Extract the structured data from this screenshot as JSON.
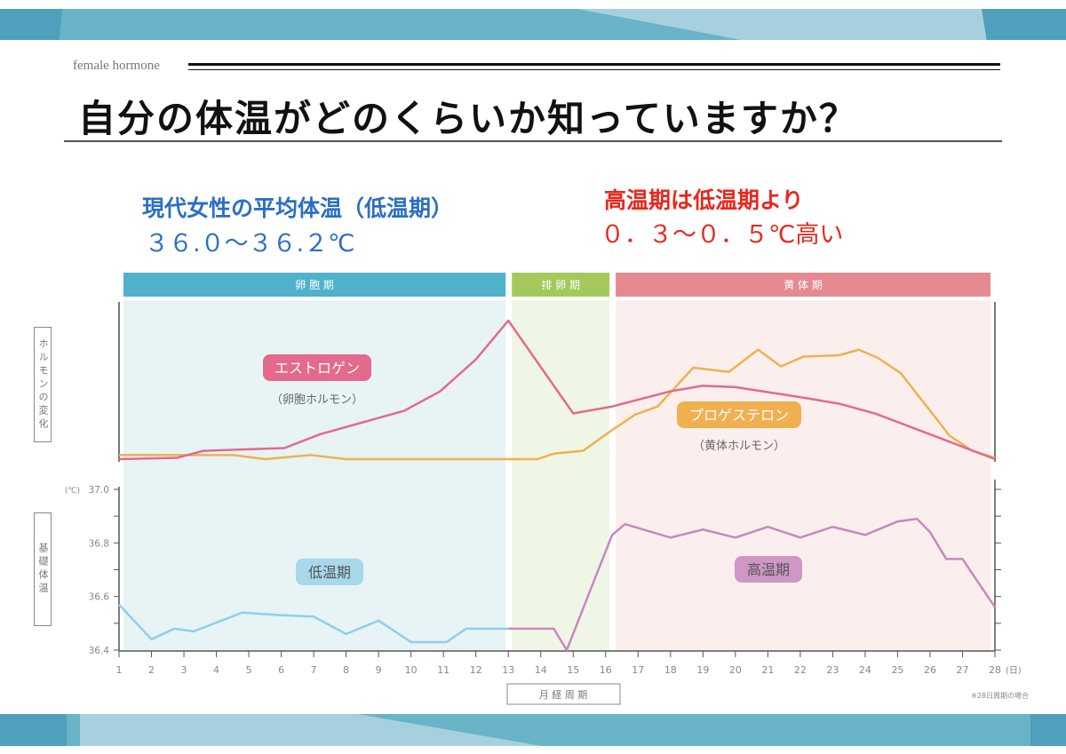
{
  "header": {
    "kicker": "female hormone",
    "title": "自分の体温がどのくらいか知っていますか？"
  },
  "callouts": {
    "average_label": "現代女性の平均体温（低温期）",
    "average_value": "３６.０～３６.２℃",
    "high_label": "高温期は低温期より",
    "high_value": "０．３～０．５℃高い"
  },
  "colors": {
    "follicular": "#4fb2cc",
    "ovulation": "#a3c95a",
    "luteal": "#e58a91",
    "estrogen": "#e36a8c",
    "progesterone": "#f0b050",
    "low_temp": "#8fcfe6",
    "high_temp": "#c987bf",
    "title_blue": "#2b6fc2",
    "title_red": "#e8281e"
  },
  "chart_data": [
    {
      "type": "line",
      "ylabel": "ホルモンの変化",
      "xlim": [
        1,
        28
      ],
      "phases": [
        {
          "label": "卵 胞 期",
          "from": 1,
          "to": 13
        },
        {
          "label": "排 卵 期",
          "from": 13,
          "to": 16.2
        },
        {
          "label": "黄 体 期",
          "from": 16.2,
          "to": 28
        }
      ],
      "series": [
        {
          "name": "エストロゲン",
          "sublabel": "（卵胞ホルモン）",
          "x": [
            1,
            2.8,
            3.6,
            6.1,
            7.2,
            9.8,
            10.9,
            12.0,
            13.0,
            15.0,
            16.2,
            18.0,
            19.0,
            20.0,
            21.1,
            22.2,
            23.2,
            24.3,
            26.1,
            28
          ],
          "y": [
            0,
            1,
            6,
            8,
            18,
            35,
            49,
            72,
            100,
            33,
            38,
            49,
            53,
            52,
            48,
            44,
            40,
            33,
            17,
            0
          ]
        },
        {
          "name": "プロゲステロン",
          "sublabel": "（黄体ホルモン）",
          "x": [
            1,
            4.5,
            5.5,
            6.9,
            8.0,
            13.9,
            14.4,
            15.3,
            16.2,
            16.9,
            17.6,
            18.7,
            19.8,
            20.7,
            21.4,
            22.1,
            23.2,
            23.8,
            24.4,
            25.1,
            26.6,
            27.3,
            28
          ],
          "y": [
            3,
            3,
            0,
            3,
            0,
            0,
            4,
            6,
            21,
            32,
            38,
            66,
            63,
            79,
            67,
            74,
            75,
            79,
            73,
            62,
            17,
            6,
            1
          ]
        }
      ]
    },
    {
      "type": "line",
      "ylabel": "基礎体温",
      "yunit": "(℃)",
      "ylim": [
        36.4,
        37.0
      ],
      "yticks": [
        "37.0",
        "36.8",
        "36.6",
        "36.4"
      ],
      "xlabel": "月 経 周 期",
      "xunit": "(日)",
      "xticks": [
        "1",
        "2",
        "3",
        "4",
        "5",
        "6",
        "7",
        "8",
        "9",
        "10",
        "11",
        "12",
        "13",
        "14",
        "15",
        "16",
        "17",
        "18",
        "19",
        "20",
        "21",
        "22",
        "23",
        "24",
        "25",
        "26",
        "27",
        "28"
      ],
      "note": "※28日周期の場合",
      "series": [
        {
          "name": "低温期",
          "x": [
            1,
            2,
            2.7,
            3.3,
            4.8,
            6,
            7,
            8,
            9,
            10,
            11.1,
            11.7,
            13
          ],
          "y": [
            36.57,
            36.44,
            36.48,
            36.47,
            36.54,
            36.53,
            36.525,
            36.46,
            36.51,
            36.43,
            36.43,
            36.48,
            36.48
          ]
        },
        {
          "name": "高温期",
          "x": [
            13,
            14.4,
            14.8,
            16.2,
            16.6,
            18,
            19,
            20,
            21,
            22,
            23,
            24,
            25,
            25.6,
            26,
            26.5,
            27,
            28
          ],
          "y": [
            36.48,
            36.48,
            36.4,
            36.83,
            36.87,
            36.82,
            36.85,
            36.82,
            36.86,
            36.82,
            36.86,
            36.83,
            36.88,
            36.89,
            36.84,
            36.74,
            36.74,
            36.56
          ]
        }
      ]
    }
  ]
}
